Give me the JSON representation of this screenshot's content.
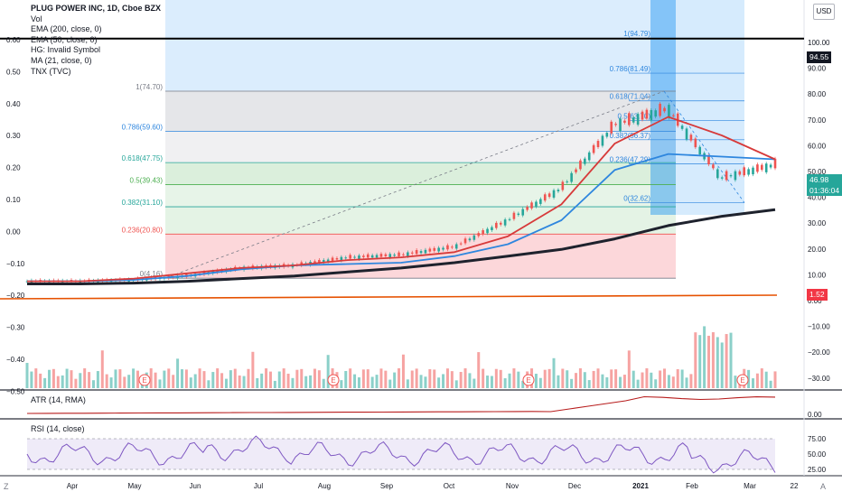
{
  "legend": {
    "symbol": "PLUG POWER INC, 1D, Cboe BZX",
    "lines": [
      "Vol",
      "EMA (200, close, 0)",
      "EMA (50, close, 0)",
      "HG: Invalid Symbol",
      "MA (21, close, 0)",
      "TNX (TVC)"
    ]
  },
  "currency_button": "USD",
  "price_badges": {
    "fib_top": "94.55",
    "last_price": "46.98",
    "countdown": "01:36:04",
    "tnx": "1.52"
  },
  "panes": {
    "atr_label": "ATR (14, RMA)",
    "rsi_label": "RSI (14, close)"
  },
  "bottom": {
    "left": "Z",
    "right": "A"
  },
  "colors": {
    "price_up": "#26a69a",
    "price_down": "#ef5350",
    "ema200": "#1e222d",
    "ema50": "#2e86de",
    "ma21": "#d73a3a",
    "tnx": "#e65100",
    "atr": "#b71c1c",
    "rsi": "#7e57c2",
    "fib_badge": "#131722",
    "last_badge": "#26a69a",
    "tnx_badge": "#f23645"
  },
  "chart_data": {
    "type": "line",
    "title": "PLUG POWER INC, 1D, Cboe BZX",
    "x_ticks": [
      "Apr",
      "May",
      "Jun",
      "Jul",
      "Aug",
      "Sep",
      "Oct",
      "Nov",
      "Dec",
      "2021",
      "Feb",
      "Mar",
      "22"
    ],
    "right_axis": [
      "100.00",
      "90.00",
      "80.00",
      "70.00",
      "60.00",
      "50.00",
      "40.00",
      "30.00",
      "20.00",
      "10.00",
      "0.00",
      "−10.00",
      "−20.00",
      "−30.00"
    ],
    "left_axis": [
      "0.60",
      "0.50",
      "0.40",
      "0.30",
      "0.20",
      "0.10",
      "0.00",
      "−0.10",
      "−0.20",
      "−0.30",
      "−0.40",
      "−0.50"
    ],
    "atr_axis": [
      "0.00"
    ],
    "rsi_axis": [
      "75.00",
      "50.00",
      "25.00"
    ],
    "ylim": [
      -38,
      105
    ],
    "fib_big": [
      {
        "label": "1(74.70)",
        "value": 74.7
      },
      {
        "label": "0.786(59.60)",
        "value": 59.6
      },
      {
        "label": "0.618(47.75)",
        "value": 47.75
      },
      {
        "label": "0.5(39.43)",
        "value": 39.43
      },
      {
        "label": "0.382(31.10)",
        "value": 31.1
      },
      {
        "label": "0.236(20.80)",
        "value": 20.8
      },
      {
        "label": "0(4.16)",
        "value": 4.16
      }
    ],
    "fib_small": [
      {
        "label": "1(94.79)",
        "value": 94.79
      },
      {
        "label": "0.786(81.49)",
        "value": 81.49
      },
      {
        "label": "0.618(71.04)",
        "value": 71.04
      },
      {
        "label": "0.5(63.70)",
        "value": 63.7
      },
      {
        "label": "0.382(56.37)",
        "value": 56.37
      },
      {
        "label": "0.236(47.29)",
        "value": 47.29
      },
      {
        "label": "0(32.62)",
        "value": 32.62
      }
    ],
    "series": [
      {
        "name": "EMA (200, close, 0)",
        "values": [
          2,
          2,
          2.3,
          3,
          4,
          5,
          6.5,
          8,
          10,
          12.5,
          15,
          19,
          24,
          27.5,
          30
        ]
      },
      {
        "name": "EMA (50, close, 0)",
        "values": [
          3,
          3,
          3.5,
          5,
          7.5,
          9,
          9.5,
          10,
          12.5,
          17,
          26,
          45,
          51,
          50,
          49
        ]
      },
      {
        "name": "MA (21, close, 0)",
        "values": [
          3,
          3,
          4,
          6,
          8,
          9,
          11,
          12,
          14,
          20,
          32,
          55,
          65,
          58,
          49
        ]
      }
    ],
    "price_close": [
      3,
      3,
      3.5,
      5,
      8,
      9,
      12,
      13,
      16,
      26,
      38,
      62,
      68,
      42,
      46.98
    ]
  }
}
